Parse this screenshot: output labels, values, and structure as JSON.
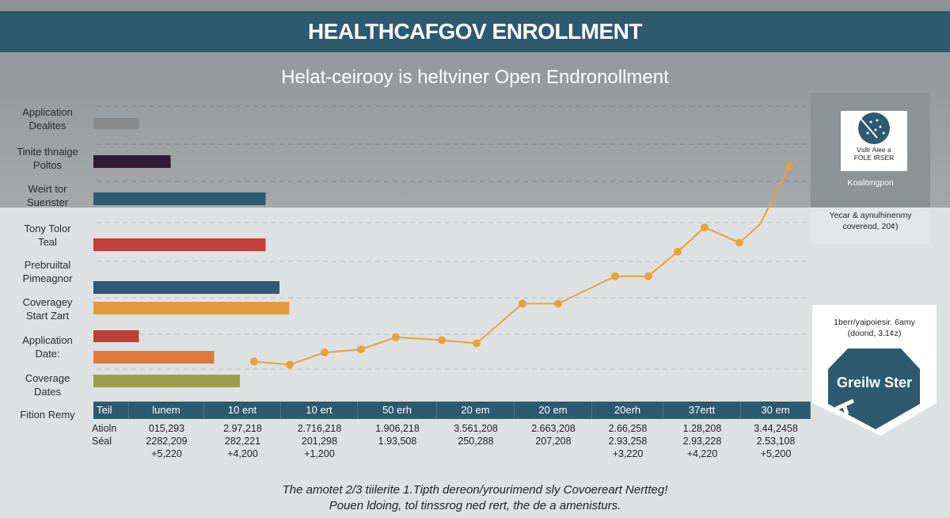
{
  "header": {
    "title": "HEALTHCAFGOV ENROLLMENT",
    "subtitle": "Helat-ceirooy is heltviner Open Endronollment"
  },
  "chart_data": [
    {
      "type": "bar",
      "orientation": "horizontal",
      "categories": [
        "Application Dealites",
        "Tinite thnaige Poltos",
        "Weirt tor Suenster",
        "Tony Tolor Teal",
        "Prebruiltal Pimeagnor",
        "Coveragey Start Zart",
        "Application Date:",
        "",
        "Coverage Dates"
      ],
      "label_lines": [
        [
          "Application",
          "Dealites"
        ],
        [
          "Tinite thnaige",
          "Poltos"
        ],
        [
          "Weirt tor",
          "Suenster"
        ],
        [
          "Tony Tolor",
          "Teal"
        ],
        [
          "Prebruiltal",
          "Pimeagnor"
        ],
        [
          "Coveragey",
          "Start Zart"
        ],
        [
          "Application",
          "Date:"
        ],
        [],
        [
          "Coverage",
          "Dates"
        ]
      ],
      "values": [
        23,
        39,
        87,
        87,
        94,
        99,
        23,
        61,
        74
      ],
      "colors": [
        "#8a8a8a",
        "#2f1a35",
        "#2b5a72",
        "#c0403a",
        "#2b5a72",
        "#e39a3c",
        "#b84038",
        "#e07a3a",
        "#9c9e4e"
      ],
      "grid": "dashed horizontal"
    },
    {
      "type": "line",
      "x": [
        1,
        2,
        3,
        4,
        5,
        6,
        7,
        8,
        9,
        10,
        11,
        12,
        13,
        14,
        15,
        16
      ],
      "values": [
        10,
        9,
        13,
        14,
        18,
        17,
        16,
        29,
        29,
        38,
        38,
        46,
        54,
        49,
        55,
        74
      ],
      "color": "#e8a23c",
      "markers": [
        true,
        true,
        true,
        true,
        true,
        true,
        true,
        true,
        true,
        true,
        true,
        true,
        true,
        true,
        false,
        true
      ]
    }
  ],
  "table": {
    "row_title": "Fition Remy",
    "headers": [
      "Teil",
      "lunem",
      "10 ent",
      "10 ert",
      "50 erh",
      "20 em",
      "20 em",
      "20erh",
      "37ertt",
      "30 em"
    ],
    "row_labels": [
      "Atioln",
      "Séal"
    ],
    "columns": [
      [
        "015,293",
        "2282,209",
        "+5,220"
      ],
      [
        "2.97,218",
        "282,221",
        "+4,200"
      ],
      [
        "2.716,218",
        "201,298",
        "+1,200"
      ],
      [
        "1.906,218",
        "1.93,508",
        ""
      ],
      [
        "3.561,208",
        "250,288",
        ""
      ],
      [
        "2.663,208",
        "207,208",
        ""
      ],
      [
        "2.66,258",
        "2.93,258",
        "+3,220"
      ],
      [
        "1.28,208",
        "2.93,228",
        "+4,220"
      ],
      [
        "3.44,2458",
        "2.53,108",
        "+5,200"
      ]
    ]
  },
  "side": {
    "card_text": [
      "Vs8r Alee a",
      "FOLE IRSER"
    ],
    "card_caption": "Koalitmgpon",
    "note": [
      "Yecar & aynulhinenmy",
      "covereod, 20¢)"
    ],
    "badge_text": [
      "1berr/yaipoiesir. 6amy",
      "(doond, 3.1¢z)"
    ],
    "badge_label": "Greilw Ster"
  },
  "footer": {
    "lines": [
      "The amotet 2/3 tiilerite 1.Tipth dereon/yrourimend sly Covoereart Nertteg!",
      "Pouen ldoing, tol tinssrog ned rert, the de a amenisturs."
    ]
  },
  "colors": {
    "banner": "#2e5a70",
    "line": "#e8a23c"
  }
}
